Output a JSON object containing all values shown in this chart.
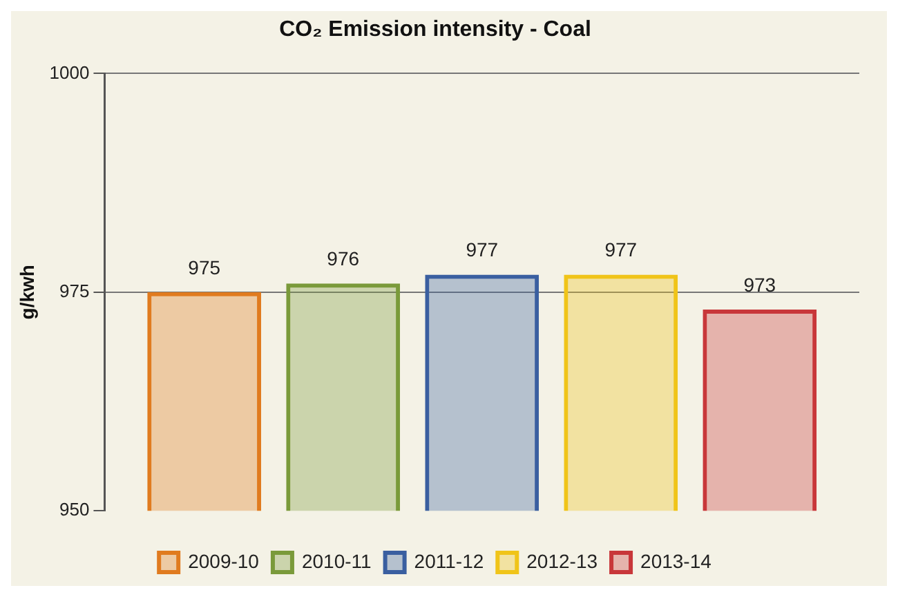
{
  "chart_data": {
    "type": "bar",
    "title": "CO₂ Emission intensity - Coal",
    "ylabel": "g/kwh",
    "categories": [
      null
    ],
    "series": [
      {
        "name": "2009-10",
        "color": "#e07b1f",
        "values": [
          975
        ]
      },
      {
        "name": "2010-11",
        "color": "#7a9a3a",
        "values": [
          976
        ]
      },
      {
        "name": "2011-12",
        "color": "#3a5fa0",
        "values": [
          977
        ]
      },
      {
        "name": "2012-13",
        "color": "#f0c419",
        "values": [
          977
        ]
      },
      {
        "name": "2013-14",
        "color": "#c8373a",
        "values": [
          973
        ]
      }
    ],
    "ylim": [
      950,
      1000
    ],
    "yticks": [
      950,
      975,
      1000
    ],
    "grid": "y",
    "legend": "bottom",
    "data_labels": true
  }
}
